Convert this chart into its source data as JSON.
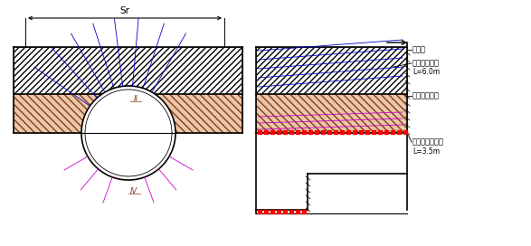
{
  "bg_color": "#ffffff",
  "line_color": "#000000",
  "blue_color": "#0000cc",
  "pink_color": "#cc00cc",
  "red_color": "#ff0000",
  "label_II": "II",
  "label_IV": "IV",
  "label_Sr": "Sr",
  "label_lishi": "砖砂层",
  "label_zhujiao_da": "超前注浆导管",
  "label_L60": "L=6.0m",
  "label_niantu": "砖质粘性土层",
  "label_zhujiao_xiao": "超前注浆小导管",
  "label_L35": "L=3.5m",
  "figsize": [
    5.87,
    2.72
  ],
  "dpi": 100
}
